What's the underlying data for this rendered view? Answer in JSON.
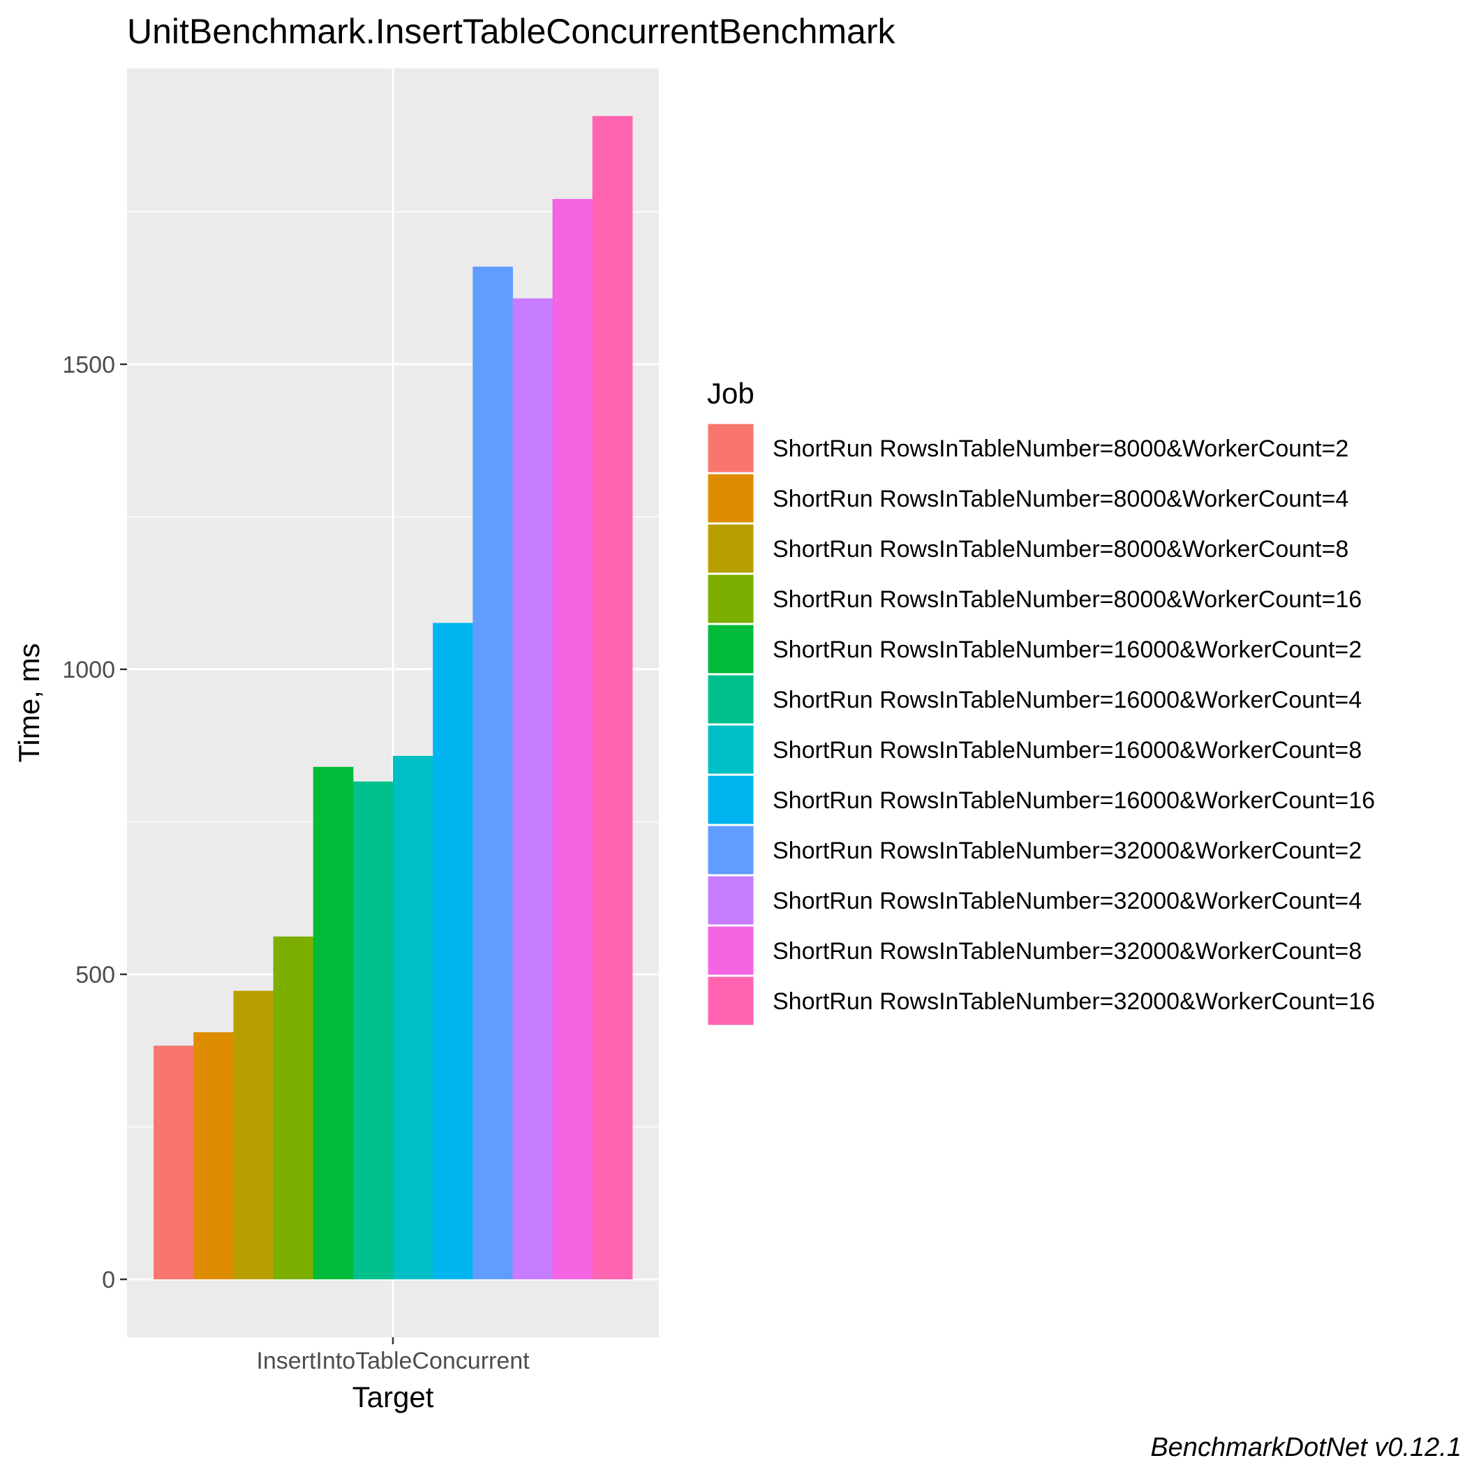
{
  "chart_data": {
    "type": "bar",
    "title": "UnitBenchmark.InsertTableConcurrentBenchmark",
    "xlabel": "Target",
    "ylabel": "Time, ms",
    "categories": [
      "InsertIntoTableConcurrent"
    ],
    "ylim": [
      -95,
      1985
    ],
    "yticks": [
      0,
      500,
      1000,
      1500
    ],
    "grid": true,
    "legend": {
      "title": "Job",
      "position": "right"
    },
    "caption": "BenchmarkDotNet v0.12.1",
    "series": [
      {
        "name": "ShortRun RowsInTableNumber=8000&WorkerCount=2",
        "values": [
          383
        ],
        "color": "#F8766D"
      },
      {
        "name": "ShortRun RowsInTableNumber=8000&WorkerCount=4",
        "values": [
          405
        ],
        "color": "#DE8C00"
      },
      {
        "name": "ShortRun RowsInTableNumber=8000&WorkerCount=8",
        "values": [
          473
        ],
        "color": "#B79F00"
      },
      {
        "name": "ShortRun RowsInTableNumber=8000&WorkerCount=16",
        "values": [
          562
        ],
        "color": "#7CAE00"
      },
      {
        "name": "ShortRun RowsInTableNumber=16000&WorkerCount=2",
        "values": [
          840
        ],
        "color": "#00BA38"
      },
      {
        "name": "ShortRun RowsInTableNumber=16000&WorkerCount=4",
        "values": [
          816
        ],
        "color": "#00C08B"
      },
      {
        "name": "ShortRun RowsInTableNumber=16000&WorkerCount=8",
        "values": [
          858
        ],
        "color": "#00BFC4"
      },
      {
        "name": "ShortRun RowsInTableNumber=16000&WorkerCount=16",
        "values": [
          1076
        ],
        "color": "#00B4F0"
      },
      {
        "name": "ShortRun RowsInTableNumber=32000&WorkerCount=2",
        "values": [
          1660
        ],
        "color": "#619CFF"
      },
      {
        "name": "ShortRun RowsInTableNumber=32000&WorkerCount=4",
        "values": [
          1608
        ],
        "color": "#C77CFF"
      },
      {
        "name": "ShortRun RowsInTableNumber=32000&WorkerCount=8",
        "values": [
          1771
        ],
        "color": "#F564E3"
      },
      {
        "name": "ShortRun RowsInTableNumber=32000&WorkerCount=16",
        "values": [
          1907
        ],
        "color": "#FF64B0"
      }
    ]
  }
}
